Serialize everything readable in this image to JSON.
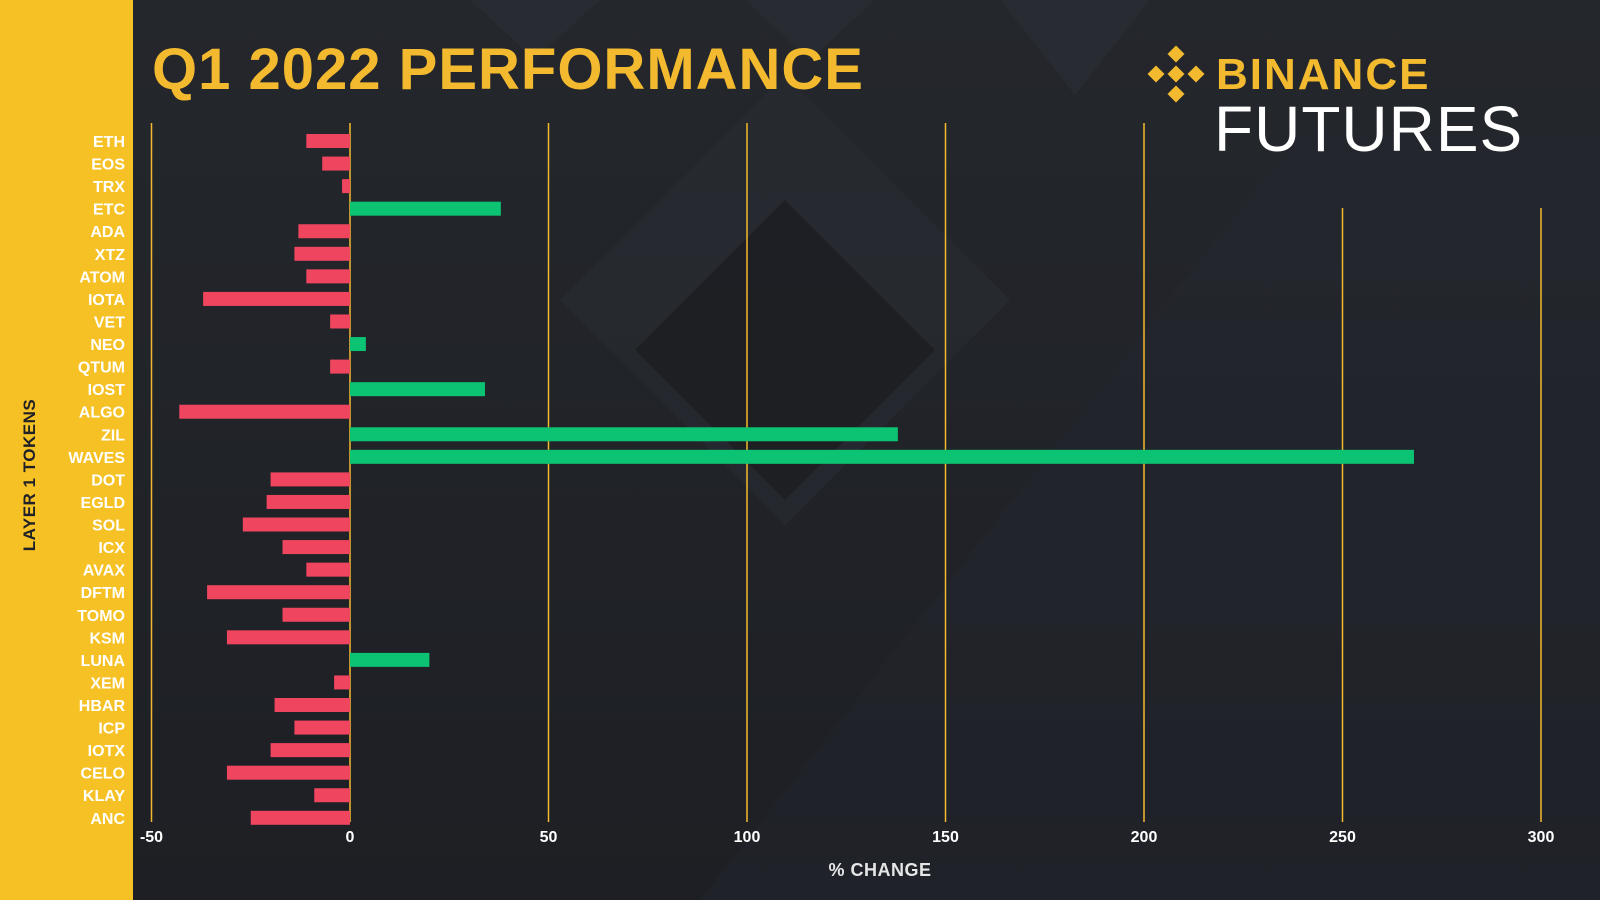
{
  "title": "Q1 2022 PERFORMANCE",
  "logo": {
    "brand": "BINANCE",
    "product": "FUTURES"
  },
  "colors": {
    "sidebar": "#f6c125",
    "gridline": "#f3ba2f",
    "positive": "#0cc273",
    "negative": "#f0455f",
    "background": "#1f2126",
    "title": "#f3ba2f"
  },
  "chart_data": {
    "type": "bar",
    "orientation": "horizontal",
    "title": "Q1 2022 PERFORMANCE",
    "xlabel": "% CHANGE",
    "ylabel": "LAYER 1 TOKENS",
    "xlim": [
      -50,
      300
    ],
    "xticks": [
      "-50",
      "0",
      "50",
      "100",
      "150",
      "200",
      "250",
      "300"
    ],
    "xtick_values": [
      -50,
      0,
      50,
      100,
      150,
      200,
      250,
      300
    ],
    "grid": true,
    "categories": [
      "ETH",
      "EOS",
      "TRX",
      "ETC",
      "ADA",
      "XTZ",
      "ATOM",
      "IOTA",
      "VET",
      "NEO",
      "QTUM",
      "IOST",
      "ALGO",
      "ZIL",
      "WAVES",
      "DOT",
      "EGLD",
      "SOL",
      "ICX",
      "AVAX",
      "DFTM",
      "TOMO",
      "KSM",
      "LUNA",
      "XEM",
      "HBAR",
      "ICP",
      "IOTX",
      "CELO",
      "KLAY",
      "ANC"
    ],
    "values": [
      -11,
      -7,
      -2,
      38,
      -13,
      -14,
      -11,
      -37,
      -5,
      4,
      -5,
      34,
      -43,
      138,
      268,
      -20,
      -21,
      -27,
      -17,
      -11,
      -36,
      -17,
      -31,
      20,
      -4,
      -19,
      -14,
      -20,
      -31,
      -9,
      -25
    ]
  }
}
